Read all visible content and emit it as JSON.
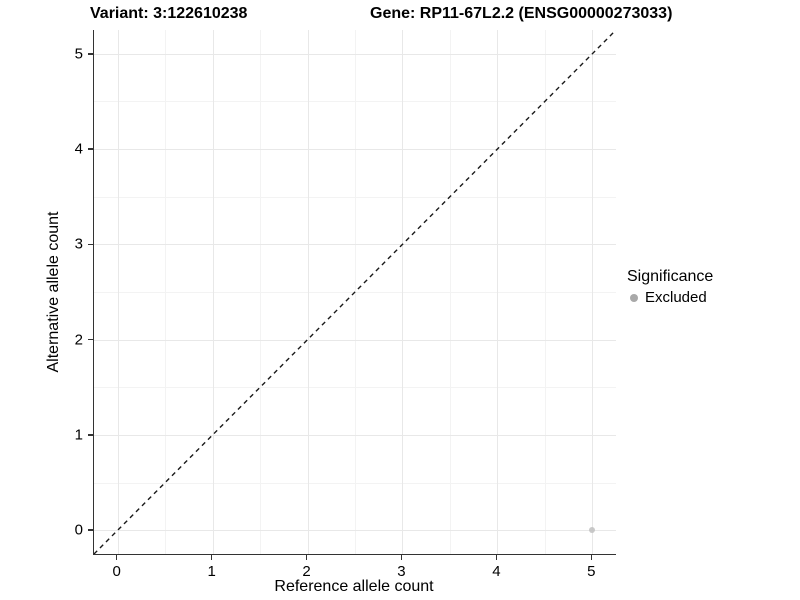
{
  "titles": {
    "variant": "Variant: 3:122610238",
    "gene": "Gene: RP11-67L2.2 (ENSG00000273033)"
  },
  "chart_data": {
    "type": "scatter",
    "xlabel": "Reference allele count",
    "ylabel": "Alternative allele count",
    "xlim": [
      -0.25,
      5.25
    ],
    "ylim": [
      -0.25,
      5.25
    ],
    "x_ticks": [
      0,
      1,
      2,
      3,
      4,
      5
    ],
    "y_ticks": [
      0,
      1,
      2,
      3,
      4,
      5
    ],
    "minor_gridlines": [
      0.5,
      1.5,
      2.5,
      3.5,
      4.5
    ],
    "grid": true,
    "identity_line": {
      "style": "dashed",
      "color": "#1a1a1a",
      "from": [
        -0.25,
        -0.25
      ],
      "to": [
        5.25,
        5.25
      ]
    },
    "points": [
      {
        "x": 5,
        "y": 0,
        "significance": "Excluded",
        "color": "#c0c0c0"
      }
    ],
    "legend": {
      "position": "right",
      "title": "Significance",
      "entries": [
        {
          "label": "Excluded",
          "color": "#a9a9a9"
        }
      ]
    }
  }
}
